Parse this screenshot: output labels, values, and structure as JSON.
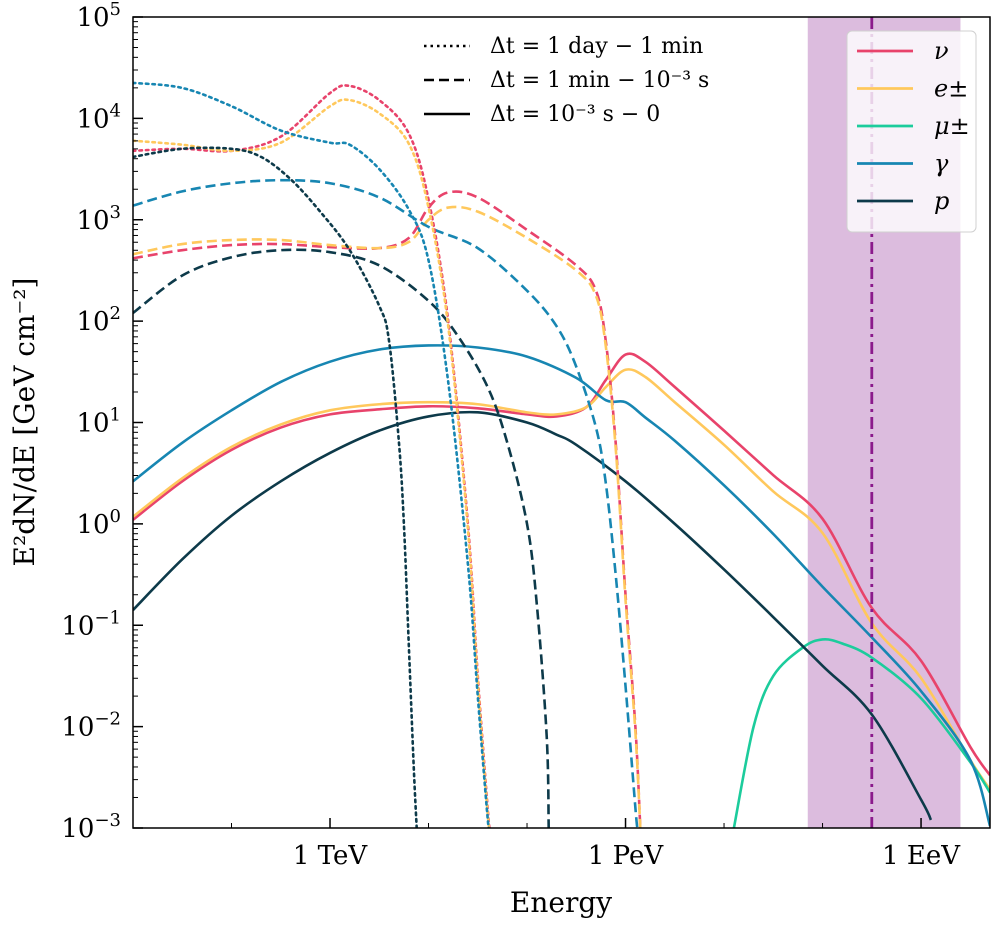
{
  "chart_data": {
    "type": "line",
    "title": "",
    "xlabel": "Energy",
    "ylabel": "E²dN/dE [GeV cm⁻²]",
    "x_scale": "log10 (GeV)",
    "y_scale": "log10",
    "xlim_log10_GeV": [
      1.0,
      9.7
    ],
    "ylim_log10": [
      -3,
      5
    ],
    "x_ticks": [
      {
        "label": "1 TeV",
        "log10_GeV": 3
      },
      {
        "label": "1 PeV",
        "log10_GeV": 6
      },
      {
        "label": "1 EeV",
        "log10_GeV": 9
      }
    ],
    "y_ticks": [
      {
        "mant": "10",
        "exp": "5",
        "log10": 5
      },
      {
        "mant": "10",
        "exp": "4",
        "log10": 4
      },
      {
        "mant": "10",
        "exp": "3",
        "log10": 3
      },
      {
        "mant": "10",
        "exp": "2",
        "log10": 2
      },
      {
        "mant": "10",
        "exp": "1",
        "log10": 1
      },
      {
        "mant": "10",
        "exp": "0",
        "log10": 0
      },
      {
        "mant": "10",
        "exp": "−1",
        "log10": -1
      },
      {
        "mant": "10",
        "exp": "−2",
        "log10": -2
      },
      {
        "mant": "10",
        "exp": "−3",
        "log10": -3
      }
    ],
    "shaded_band_log10_GeV": [
      7.85,
      9.4
    ],
    "shaded_color": "#dcbcde",
    "vline_log10_GeV": 8.5,
    "vline_color": "#8b1a8b",
    "particles": [
      {
        "key": "nu",
        "label": "ν",
        "color": "#e8436b"
      },
      {
        "key": "e",
        "label": "e±",
        "color": "#ffc85c"
      },
      {
        "key": "mu",
        "label": "μ±",
        "color": "#1ccc9c"
      },
      {
        "key": "gamma",
        "label": "γ",
        "color": "#1786b2"
      },
      {
        "key": "p",
        "label": "p",
        "color": "#0d3a4a"
      }
    ],
    "time_windows": [
      {
        "key": "dotted",
        "label": "Δt = 1 day − 1 min"
      },
      {
        "key": "dashed",
        "label": "Δt = 1 min − 10⁻³ s"
      },
      {
        "key": "solid",
        "label": "Δt = 10⁻³ s − 0"
      }
    ],
    "series": [
      {
        "name": "nu solid",
        "particle": "nu",
        "style": "solid",
        "points": [
          [
            1.0,
            0.04
          ],
          [
            1.5,
            0.42
          ],
          [
            2.0,
            0.73
          ],
          [
            2.5,
            0.95
          ],
          [
            3.0,
            1.08
          ],
          [
            3.5,
            1.13
          ],
          [
            4.0,
            1.16
          ],
          [
            4.5,
            1.14
          ],
          [
            5.0,
            1.08
          ],
          [
            5.3,
            1.06
          ],
          [
            5.6,
            1.15
          ],
          [
            5.8,
            1.42
          ],
          [
            6.0,
            1.67
          ],
          [
            6.2,
            1.6
          ],
          [
            6.5,
            1.35
          ],
          [
            7.0,
            0.92
          ],
          [
            7.5,
            0.48
          ],
          [
            8.0,
            0.05
          ],
          [
            8.5,
            -0.83
          ],
          [
            9.0,
            -1.35
          ],
          [
            9.5,
            -2.2
          ],
          [
            9.7,
            -2.48
          ]
        ]
      },
      {
        "name": "e solid",
        "particle": "e",
        "style": "solid",
        "points": [
          [
            1.0,
            0.07
          ],
          [
            1.5,
            0.45
          ],
          [
            2.0,
            0.76
          ],
          [
            2.5,
            0.98
          ],
          [
            3.0,
            1.12
          ],
          [
            3.5,
            1.18
          ],
          [
            4.0,
            1.2
          ],
          [
            4.5,
            1.18
          ],
          [
            5.0,
            1.1
          ],
          [
            5.3,
            1.08
          ],
          [
            5.6,
            1.15
          ],
          [
            5.8,
            1.35
          ],
          [
            6.0,
            1.52
          ],
          [
            6.2,
            1.45
          ],
          [
            6.5,
            1.2
          ],
          [
            7.0,
            0.78
          ],
          [
            7.5,
            0.32
          ],
          [
            8.0,
            -0.09
          ],
          [
            8.5,
            -0.98
          ],
          [
            9.0,
            -1.52
          ],
          [
            9.5,
            -2.33
          ],
          [
            9.7,
            -2.62
          ]
        ]
      },
      {
        "name": "mu solid",
        "particle": "mu",
        "style": "solid",
        "points": [
          [
            7.1,
            -3.0
          ],
          [
            7.3,
            -2.0
          ],
          [
            7.5,
            -1.5
          ],
          [
            7.8,
            -1.22
          ],
          [
            8.0,
            -1.14
          ],
          [
            8.2,
            -1.18
          ],
          [
            8.5,
            -1.32
          ],
          [
            9.0,
            -1.72
          ],
          [
            9.5,
            -2.35
          ],
          [
            9.7,
            -2.65
          ]
        ]
      },
      {
        "name": "gamma solid",
        "particle": "gamma",
        "style": "solid",
        "points": [
          [
            1.0,
            0.42
          ],
          [
            1.5,
            0.8
          ],
          [
            2.0,
            1.12
          ],
          [
            2.5,
            1.4
          ],
          [
            3.0,
            1.6
          ],
          [
            3.5,
            1.72
          ],
          [
            4.0,
            1.76
          ],
          [
            4.5,
            1.74
          ],
          [
            5.0,
            1.65
          ],
          [
            5.5,
            1.44
          ],
          [
            5.8,
            1.22
          ],
          [
            6.0,
            1.2
          ],
          [
            6.2,
            1.05
          ],
          [
            6.5,
            0.82
          ],
          [
            7.0,
            0.38
          ],
          [
            7.5,
            -0.1
          ],
          [
            8.0,
            -0.62
          ],
          [
            8.5,
            -1.12
          ],
          [
            9.0,
            -1.65
          ],
          [
            9.5,
            -2.33
          ],
          [
            9.7,
            -2.98
          ]
        ]
      },
      {
        "name": "p solid",
        "particle": "p",
        "style": "solid",
        "points": [
          [
            1.0,
            -0.85
          ],
          [
            1.5,
            -0.35
          ],
          [
            2.0,
            0.08
          ],
          [
            2.5,
            0.42
          ],
          [
            3.0,
            0.7
          ],
          [
            3.5,
            0.92
          ],
          [
            4.0,
            1.06
          ],
          [
            4.5,
            1.1
          ],
          [
            5.0,
            1.0
          ],
          [
            5.3,
            0.88
          ],
          [
            5.5,
            0.78
          ],
          [
            6.0,
            0.42
          ],
          [
            6.5,
            0.0
          ],
          [
            7.0,
            -0.45
          ],
          [
            7.5,
            -0.92
          ],
          [
            8.0,
            -1.4
          ],
          [
            8.5,
            -1.88
          ],
          [
            9.0,
            -2.72
          ],
          [
            9.1,
            -2.92
          ]
        ]
      },
      {
        "name": "nu dashed",
        "particle": "nu",
        "style": "dashed",
        "points": [
          [
            1.0,
            2.62
          ],
          [
            1.5,
            2.7
          ],
          [
            2.0,
            2.75
          ],
          [
            2.5,
            2.76
          ],
          [
            3.0,
            2.73
          ],
          [
            3.5,
            2.72
          ],
          [
            3.8,
            2.82
          ],
          [
            4.0,
            3.12
          ],
          [
            4.2,
            3.27
          ],
          [
            4.5,
            3.22
          ],
          [
            5.0,
            2.9
          ],
          [
            5.5,
            2.55
          ],
          [
            5.7,
            2.3
          ],
          [
            5.8,
            1.8
          ],
          [
            5.9,
            0.8
          ],
          [
            6.0,
            -0.7
          ],
          [
            6.1,
            -2.0
          ],
          [
            6.15,
            -3.0
          ]
        ]
      },
      {
        "name": "e dashed",
        "particle": "e",
        "style": "dashed",
        "points": [
          [
            1.0,
            2.66
          ],
          [
            1.5,
            2.76
          ],
          [
            2.0,
            2.8
          ],
          [
            2.5,
            2.8
          ],
          [
            3.0,
            2.75
          ],
          [
            3.5,
            2.72
          ],
          [
            3.8,
            2.78
          ],
          [
            4.0,
            3.0
          ],
          [
            4.2,
            3.12
          ],
          [
            4.5,
            3.08
          ],
          [
            5.0,
            2.82
          ],
          [
            5.5,
            2.5
          ],
          [
            5.7,
            2.25
          ],
          [
            5.8,
            1.75
          ],
          [
            5.9,
            0.75
          ],
          [
            6.0,
            -0.75
          ],
          [
            6.1,
            -2.05
          ],
          [
            6.15,
            -3.0
          ]
        ]
      },
      {
        "name": "gamma dashed",
        "particle": "gamma",
        "style": "dashed",
        "points": [
          [
            1.0,
            3.14
          ],
          [
            1.5,
            3.28
          ],
          [
            2.0,
            3.36
          ],
          [
            2.5,
            3.39
          ],
          [
            3.0,
            3.36
          ],
          [
            3.5,
            3.22
          ],
          [
            4.0,
            2.93
          ],
          [
            4.5,
            2.72
          ],
          [
            5.0,
            2.3
          ],
          [
            5.3,
            1.95
          ],
          [
            5.5,
            1.55
          ],
          [
            5.7,
            0.95
          ],
          [
            5.8,
            0.4
          ],
          [
            5.9,
            -0.5
          ],
          [
            6.0,
            -1.6
          ],
          [
            6.1,
            -2.8
          ],
          [
            6.12,
            -3.0
          ]
        ]
      },
      {
        "name": "p dashed",
        "particle": "p",
        "style": "dashed",
        "points": [
          [
            1.0,
            2.08
          ],
          [
            1.5,
            2.45
          ],
          [
            2.0,
            2.63
          ],
          [
            2.5,
            2.7
          ],
          [
            3.0,
            2.68
          ],
          [
            3.5,
            2.55
          ],
          [
            4.0,
            2.2
          ],
          [
            4.3,
            1.85
          ],
          [
            4.6,
            1.35
          ],
          [
            4.8,
            0.8
          ],
          [
            5.0,
            0.0
          ],
          [
            5.1,
            -0.8
          ],
          [
            5.2,
            -2.1
          ],
          [
            5.22,
            -3.0
          ]
        ]
      },
      {
        "name": "nu dotted",
        "particle": "nu",
        "style": "dotted",
        "points": [
          [
            1.0,
            3.68
          ],
          [
            1.5,
            3.7
          ],
          [
            2.0,
            3.68
          ],
          [
            2.5,
            3.82
          ],
          [
            3.0,
            4.25
          ],
          [
            3.2,
            4.32
          ],
          [
            3.5,
            4.18
          ],
          [
            3.8,
            3.85
          ],
          [
            4.0,
            3.2
          ],
          [
            4.2,
            2.0
          ],
          [
            4.4,
            0.0
          ],
          [
            4.5,
            -1.5
          ],
          [
            4.6,
            -2.8
          ],
          [
            4.62,
            -3.0
          ]
        ]
      },
      {
        "name": "e dotted",
        "particle": "e",
        "style": "dotted",
        "points": [
          [
            1.0,
            3.78
          ],
          [
            1.5,
            3.74
          ],
          [
            2.0,
            3.68
          ],
          [
            2.5,
            3.76
          ],
          [
            3.0,
            4.12
          ],
          [
            3.2,
            4.18
          ],
          [
            3.5,
            4.05
          ],
          [
            3.8,
            3.75
          ],
          [
            4.0,
            3.12
          ],
          [
            4.2,
            1.95
          ],
          [
            4.4,
            -0.05
          ],
          [
            4.5,
            -1.55
          ],
          [
            4.6,
            -2.85
          ],
          [
            4.62,
            -3.0
          ]
        ]
      },
      {
        "name": "gamma dotted",
        "particle": "gamma",
        "style": "dotted",
        "points": [
          [
            1.0,
            4.35
          ],
          [
            1.5,
            4.3
          ],
          [
            2.0,
            4.12
          ],
          [
            2.5,
            3.88
          ],
          [
            3.0,
            3.76
          ],
          [
            3.2,
            3.74
          ],
          [
            3.5,
            3.5
          ],
          [
            3.8,
            3.1
          ],
          [
            4.0,
            2.6
          ],
          [
            4.2,
            1.4
          ],
          [
            4.4,
            -0.4
          ],
          [
            4.5,
            -1.7
          ],
          [
            4.6,
            -2.9
          ],
          [
            4.62,
            -3.0
          ]
        ]
      },
      {
        "name": "p dotted",
        "particle": "p",
        "style": "dotted",
        "points": [
          [
            1.0,
            3.62
          ],
          [
            1.5,
            3.7
          ],
          [
            2.0,
            3.7
          ],
          [
            2.3,
            3.62
          ],
          [
            2.6,
            3.4
          ],
          [
            2.9,
            3.08
          ],
          [
            3.2,
            2.7
          ],
          [
            3.5,
            2.15
          ],
          [
            3.6,
            1.8
          ],
          [
            3.7,
            0.8
          ],
          [
            3.75,
            0.0
          ],
          [
            3.8,
            -1.2
          ],
          [
            3.85,
            -2.4
          ],
          [
            3.88,
            -3.0
          ]
        ]
      }
    ]
  }
}
